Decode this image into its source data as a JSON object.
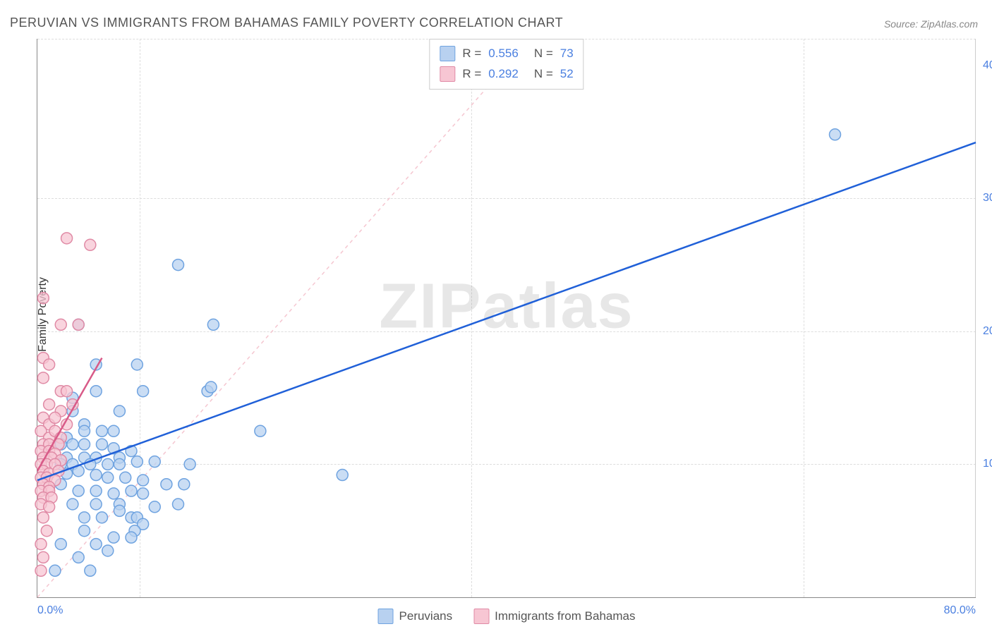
{
  "title": "PERUVIAN VS IMMIGRANTS FROM BAHAMAS FAMILY POVERTY CORRELATION CHART",
  "source": "Source: ZipAtlas.com",
  "ylabel": "Family Poverty",
  "watermark": "ZIPatlas",
  "chart": {
    "type": "scatter",
    "xlim": [
      0,
      80
    ],
    "ylim": [
      0,
      42
    ],
    "x_ticks": [
      {
        "v": 0,
        "label": "0.0%"
      },
      {
        "v": 80,
        "label": "80.0%"
      }
    ],
    "y_ticks": [
      {
        "v": 10,
        "label": "10.0%"
      },
      {
        "v": 20,
        "label": "20.0%"
      },
      {
        "v": 30,
        "label": "30.0%"
      },
      {
        "v": 40,
        "label": "40.0%"
      }
    ],
    "grid_h": [
      10,
      20,
      30,
      42
    ],
    "grid_v": [
      8.7,
      37,
      65.3
    ],
    "background_color": "#ffffff",
    "grid_color": "#dddddd",
    "marker_radius": 8,
    "marker_stroke_width": 1.5,
    "line_width": 2.5,
    "diagonal_dash": "5,5",
    "diagonal_color": "#f5c6d0",
    "series": [
      {
        "name": "Peruvians",
        "fill": "#b8d1f0",
        "stroke": "#6fa3e0",
        "line_color": "#2060d8",
        "r": 0.556,
        "n": 73,
        "regression": {
          "x1": 0,
          "y1": 8.8,
          "x2": 80,
          "y2": 34.2
        },
        "points": [
          [
            68,
            34.8
          ],
          [
            12,
            25
          ],
          [
            15,
            20.5
          ],
          [
            3.5,
            20.5
          ],
          [
            5,
            17.5
          ],
          [
            8.5,
            17.5
          ],
          [
            3,
            15
          ],
          [
            5,
            15.5
          ],
          [
            9,
            15.5
          ],
          [
            14.5,
            15.5
          ],
          [
            14.8,
            15.8
          ],
          [
            3,
            14
          ],
          [
            4,
            13
          ],
          [
            7,
            14
          ],
          [
            2.5,
            12
          ],
          [
            4,
            12.5
          ],
          [
            5.5,
            12.5
          ],
          [
            6.5,
            12.5
          ],
          [
            19,
            12.5
          ],
          [
            2,
            11.5
          ],
          [
            3,
            11.5
          ],
          [
            4,
            11.5
          ],
          [
            5.5,
            11.5
          ],
          [
            6.5,
            11.2
          ],
          [
            8,
            11
          ],
          [
            2.5,
            10.5
          ],
          [
            4,
            10.5
          ],
          [
            5,
            10.5
          ],
          [
            7,
            10.5
          ],
          [
            2,
            10
          ],
          [
            3,
            10
          ],
          [
            4.5,
            10
          ],
          [
            6,
            10
          ],
          [
            7,
            10
          ],
          [
            8.5,
            10.2
          ],
          [
            10,
            10.2
          ],
          [
            13,
            10
          ],
          [
            26,
            9.2
          ],
          [
            2.5,
            9.3
          ],
          [
            3.5,
            9.5
          ],
          [
            5,
            9.2
          ],
          [
            6,
            9
          ],
          [
            7.5,
            9
          ],
          [
            9,
            8.8
          ],
          [
            11,
            8.5
          ],
          [
            12.5,
            8.5
          ],
          [
            2,
            8.5
          ],
          [
            3.5,
            8
          ],
          [
            5,
            8
          ],
          [
            6.5,
            7.8
          ],
          [
            8,
            8
          ],
          [
            9,
            7.8
          ],
          [
            3,
            7
          ],
          [
            5,
            7
          ],
          [
            7,
            7
          ],
          [
            10,
            6.8
          ],
          [
            12,
            7
          ],
          [
            4,
            6
          ],
          [
            5.5,
            6
          ],
          [
            8,
            6
          ],
          [
            8.5,
            6
          ],
          [
            9,
            5.5
          ],
          [
            8.3,
            5
          ],
          [
            4,
            5
          ],
          [
            6.5,
            4.5
          ],
          [
            8,
            4.5
          ],
          [
            5,
            4
          ],
          [
            6,
            3.5
          ],
          [
            3.5,
            3
          ],
          [
            4.5,
            2
          ],
          [
            1.5,
            2
          ],
          [
            2,
            4
          ],
          [
            7,
            6.5
          ]
        ]
      },
      {
        "name": "Immigrants from Bahamas",
        "fill": "#f7c6d3",
        "stroke": "#e08aa5",
        "line_color": "#d85a88",
        "r": 0.292,
        "n": 52,
        "regression": {
          "x1": 0,
          "y1": 9.5,
          "x2": 5.5,
          "y2": 18
        },
        "points": [
          [
            2.5,
            27
          ],
          [
            4.5,
            26.5
          ],
          [
            0.5,
            22.5
          ],
          [
            2,
            20.5
          ],
          [
            3.5,
            20.5
          ],
          [
            0.5,
            18
          ],
          [
            1,
            17.5
          ],
          [
            0.5,
            16.5
          ],
          [
            2,
            15.5
          ],
          [
            2.5,
            15.5
          ],
          [
            1,
            14.5
          ],
          [
            2,
            14
          ],
          [
            3,
            14.5
          ],
          [
            0.5,
            13.5
          ],
          [
            1,
            13
          ],
          [
            1.5,
            13.5
          ],
          [
            2.5,
            13
          ],
          [
            0.3,
            12.5
          ],
          [
            1,
            12
          ],
          [
            1.5,
            12.5
          ],
          [
            2,
            12
          ],
          [
            0.5,
            11.5
          ],
          [
            1,
            11.5
          ],
          [
            1.8,
            11.5
          ],
          [
            0.3,
            11
          ],
          [
            1,
            11
          ],
          [
            1.5,
            10.8
          ],
          [
            0.5,
            10.5
          ],
          [
            1.2,
            10.5
          ],
          [
            2,
            10.3
          ],
          [
            0.3,
            10
          ],
          [
            0.8,
            10
          ],
          [
            1.5,
            10
          ],
          [
            0.5,
            9.5
          ],
          [
            1,
            9.3
          ],
          [
            1.8,
            9.5
          ],
          [
            0.3,
            9
          ],
          [
            0.8,
            9
          ],
          [
            1.5,
            8.8
          ],
          [
            0.5,
            8.5
          ],
          [
            1,
            8.3
          ],
          [
            0.3,
            8
          ],
          [
            1,
            8
          ],
          [
            0.5,
            7.5
          ],
          [
            1.2,
            7.5
          ],
          [
            0.3,
            7
          ],
          [
            1,
            6.8
          ],
          [
            0.5,
            6
          ],
          [
            0.8,
            5
          ],
          [
            0.3,
            4
          ],
          [
            0.5,
            3
          ],
          [
            0.3,
            2
          ]
        ]
      }
    ]
  },
  "legend_top": [
    {
      "r": "0.556",
      "n": "73",
      "swatch_fill": "#b8d1f0",
      "swatch_stroke": "#6fa3e0"
    },
    {
      "r": "0.292",
      "n": "52",
      "swatch_fill": "#f7c6d3",
      "swatch_stroke": "#e08aa5"
    }
  ],
  "legend_bottom": [
    {
      "label": "Peruvians",
      "fill": "#b8d1f0",
      "stroke": "#6fa3e0"
    },
    {
      "label": "Immigrants from Bahamas",
      "fill": "#f7c6d3",
      "stroke": "#e08aa5"
    }
  ]
}
